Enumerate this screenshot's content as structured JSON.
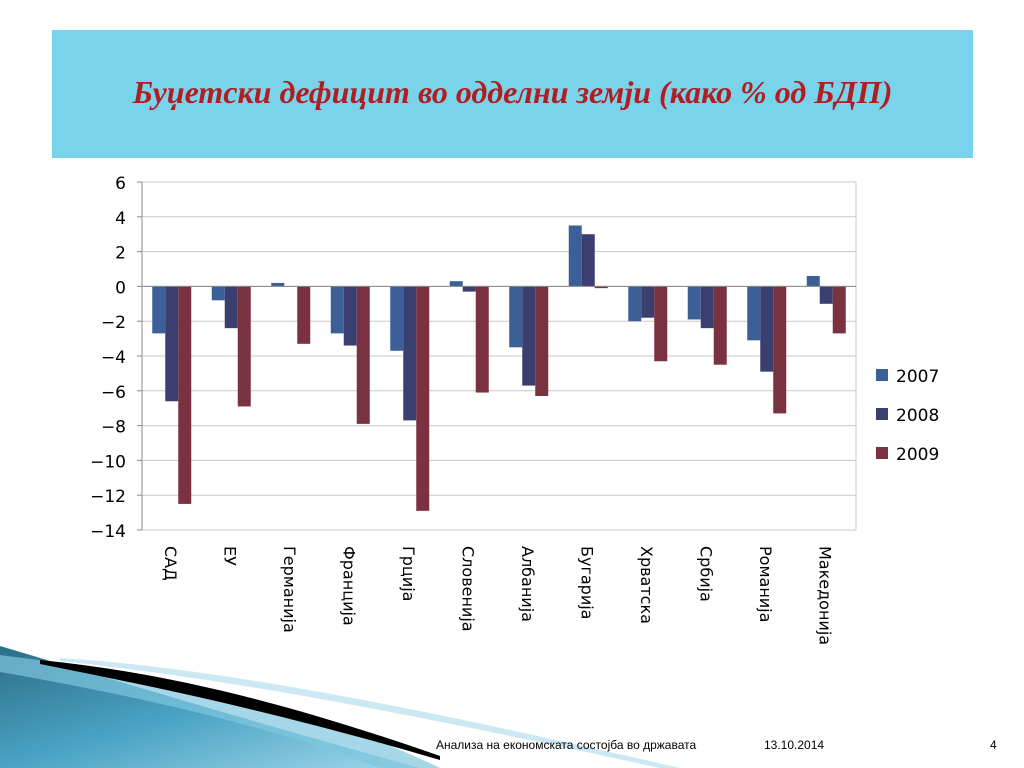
{
  "slide": {
    "title": "Буџетски дефицит во одделни земји (како % од БДП)",
    "title_color": "#b01e22",
    "title_bg": "#79d3ea"
  },
  "footer": {
    "text": "Анализа на економската состојба во државата",
    "date": "13.10.2014",
    "page": "4"
  },
  "chart_data": {
    "type": "bar",
    "title": "",
    "xlabel": "",
    "ylabel": "",
    "ylim": [
      -14,
      6
    ],
    "yticks": [
      6,
      4,
      2,
      0,
      -2,
      -4,
      -6,
      -8,
      -10,
      -12,
      -14
    ],
    "ytick_labels": [
      "6",
      "4",
      "2",
      "0",
      "−2",
      "−4",
      "−6",
      "−8",
      "−10",
      "−12",
      "−14"
    ],
    "grid": true,
    "legend_position": "right",
    "categories": [
      "САД",
      "ЕУ",
      "Германија",
      "Франција",
      "Грција",
      "Словенија",
      "Албанија",
      "Бугарија",
      "Хрватска",
      "Србија",
      "Романија",
      "Македонија"
    ],
    "series": [
      {
        "name": "2007",
        "color": "#3d5f97",
        "values": [
          -2.7,
          -0.8,
          0.2,
          -2.7,
          -3.7,
          0.3,
          -3.5,
          3.5,
          -2.0,
          -1.9,
          -3.1,
          0.6
        ]
      },
      {
        "name": "2008",
        "color": "#3b3f70",
        "values": [
          -6.6,
          -2.4,
          0.0,
          -3.4,
          -7.7,
          -0.3,
          -5.7,
          3.0,
          -1.8,
          -2.4,
          -4.9,
          -1.0
        ]
      },
      {
        "name": "2009",
        "color": "#7a3140",
        "values": [
          -12.5,
          -6.9,
          -3.3,
          -7.9,
          -12.9,
          -6.1,
          -6.3,
          -0.1,
          -4.3,
          -4.5,
          -7.3,
          -2.7
        ]
      }
    ]
  }
}
